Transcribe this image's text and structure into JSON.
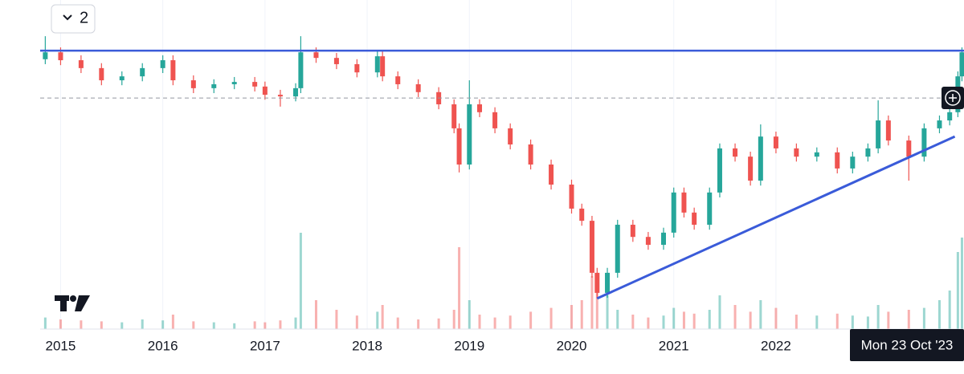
{
  "toolbar": {
    "collapse_count": "2"
  },
  "chart_data": {
    "type": "candlestick",
    "x": [
      2014.85,
      2015.0,
      2015.2,
      2015.4,
      2015.6,
      2015.8,
      2016.0,
      2016.1,
      2016.3,
      2016.5,
      2016.7,
      2016.9,
      2017.0,
      2017.15,
      2017.3,
      2017.35,
      2017.5,
      2017.7,
      2017.9,
      2018.1,
      2018.15,
      2018.3,
      2018.5,
      2018.7,
      2018.85,
      2018.9,
      2019.0,
      2019.1,
      2019.25,
      2019.4,
      2019.6,
      2019.8,
      2020.0,
      2020.1,
      2020.2,
      2020.25,
      2020.35,
      2020.45,
      2020.6,
      2020.75,
      2020.9,
      2021.0,
      2021.1,
      2021.2,
      2021.35,
      2021.45,
      2021.6,
      2021.75,
      2021.85,
      2022.0,
      2022.2,
      2022.4,
      2022.6,
      2022.75,
      2022.9,
      2023.0,
      2023.1,
      2023.3,
      2023.45,
      2023.6,
      2023.7,
      2023.78,
      2023.82
    ],
    "open": [
      82.0,
      84.1,
      81.7,
      79.3,
      75.6,
      76.8,
      79.3,
      81.7,
      75.6,
      73.2,
      74.4,
      75.1,
      73.7,
      71.2,
      70.7,
      73.2,
      84.1,
      82.4,
      80.5,
      78.0,
      82.9,
      76.8,
      74.4,
      72.0,
      68.3,
      61.0,
      50.0,
      68.3,
      65.9,
      61.0,
      56.1,
      50.0,
      43.9,
      36.6,
      32.9,
      17.1,
      11.0,
      17.1,
      31.7,
      28.0,
      25.6,
      29.3,
      41.5,
      35.4,
      31.7,
      41.5,
      54.9,
      52.4,
      45.1,
      58.5,
      54.9,
      52.4,
      53.7,
      48.8,
      52.4,
      54.9,
      63.4,
      57.3,
      52.4,
      61.0,
      63.4,
      65.9,
      76.8
    ],
    "high": [
      89.0,
      85.6,
      83.2,
      80.8,
      78.3,
      80.8,
      83.2,
      83.2,
      77.1,
      75.9,
      76.6,
      76.6,
      75.2,
      72.7,
      74.7,
      89.0,
      85.6,
      83.9,
      82.0,
      84.4,
      84.4,
      78.3,
      75.9,
      73.5,
      69.8,
      62.5,
      75.6,
      69.8,
      67.4,
      62.5,
      57.6,
      51.5,
      45.4,
      38.1,
      34.4,
      18.6,
      18.6,
      33.2,
      33.2,
      29.5,
      30.8,
      43.0,
      43.0,
      36.9,
      43.0,
      56.4,
      56.4,
      53.9,
      62.2,
      60.0,
      56.4,
      55.2,
      55.2,
      53.9,
      56.4,
      69.5,
      64.9,
      58.8,
      62.5,
      64.9,
      67.4,
      78.3,
      85.6
    ],
    "low": [
      80.5,
      80.2,
      77.8,
      74.1,
      74.1,
      75.3,
      77.8,
      74.1,
      71.7,
      71.7,
      72.9,
      72.2,
      69.7,
      67.6,
      69.2,
      71.7,
      80.9,
      79.0,
      76.5,
      76.5,
      75.3,
      72.9,
      70.5,
      66.8,
      59.5,
      47.6,
      48.5,
      64.4,
      59.5,
      54.6,
      48.5,
      42.4,
      35.1,
      31.4,
      15.6,
      9.3,
      9.5,
      15.6,
      26.5,
      24.1,
      24.1,
      27.8,
      33.9,
      30.2,
      30.2,
      40.0,
      50.9,
      43.6,
      43.6,
      53.4,
      50.9,
      50.9,
      47.3,
      47.3,
      50.9,
      53.4,
      55.8,
      45.1,
      50.9,
      59.5,
      61.9,
      64.4,
      75.3
    ],
    "close": [
      84.1,
      81.7,
      79.3,
      75.6,
      76.8,
      79.3,
      81.7,
      75.6,
      73.2,
      74.4,
      75.1,
      73.7,
      71.2,
      70.7,
      73.2,
      84.1,
      82.4,
      80.5,
      78.0,
      82.9,
      76.8,
      74.4,
      72.0,
      68.3,
      61.0,
      50.0,
      68.3,
      65.9,
      61.0,
      56.1,
      50.0,
      43.9,
      36.6,
      32.9,
      17.1,
      11.0,
      17.1,
      31.7,
      28.0,
      25.6,
      29.3,
      41.5,
      35.4,
      31.7,
      41.5,
      54.9,
      52.4,
      45.1,
      58.5,
      54.9,
      52.4,
      53.7,
      48.8,
      52.4,
      54.9,
      63.4,
      57.3,
      52.4,
      61.0,
      63.4,
      65.9,
      76.8,
      84.1
    ],
    "volume": [
      12,
      10,
      9,
      8,
      7,
      10,
      9,
      15,
      8,
      7,
      6,
      8,
      7,
      9,
      12,
      100,
      30,
      20,
      14,
      18,
      25,
      12,
      10,
      11,
      20,
      85,
      30,
      15,
      12,
      14,
      18,
      22,
      25,
      30,
      55,
      45,
      35,
      20,
      15,
      12,
      14,
      22,
      18,
      16,
      20,
      35,
      25,
      18,
      30,
      22,
      15,
      14,
      16,
      14,
      13,
      25,
      18,
      20,
      22,
      30,
      40,
      80,
      95
    ],
    "xlim": [
      2014.8,
      2023.84
    ],
    "ylim": [
      0,
      100
    ],
    "volume_lim": [
      0,
      100
    ],
    "xticks": [
      2015,
      2016,
      2017,
      2018,
      2019,
      2020,
      2021,
      2022
    ],
    "up_color": "#26a69a",
    "down_color": "#ef5350",
    "levels": [
      {
        "value": 84.6,
        "color": "#3a5bd9",
        "style": "solid"
      },
      {
        "value": 70.2,
        "color": "#9598a1",
        "style": "dashed"
      }
    ],
    "trendline": {
      "x": [
        2020.25,
        2023.75
      ],
      "y": [
        9.3,
        58.5
      ],
      "color": "#3a5bd9"
    },
    "crosshair": {
      "value": 2023.81,
      "label": "Mon 23 Oct '23"
    }
  }
}
